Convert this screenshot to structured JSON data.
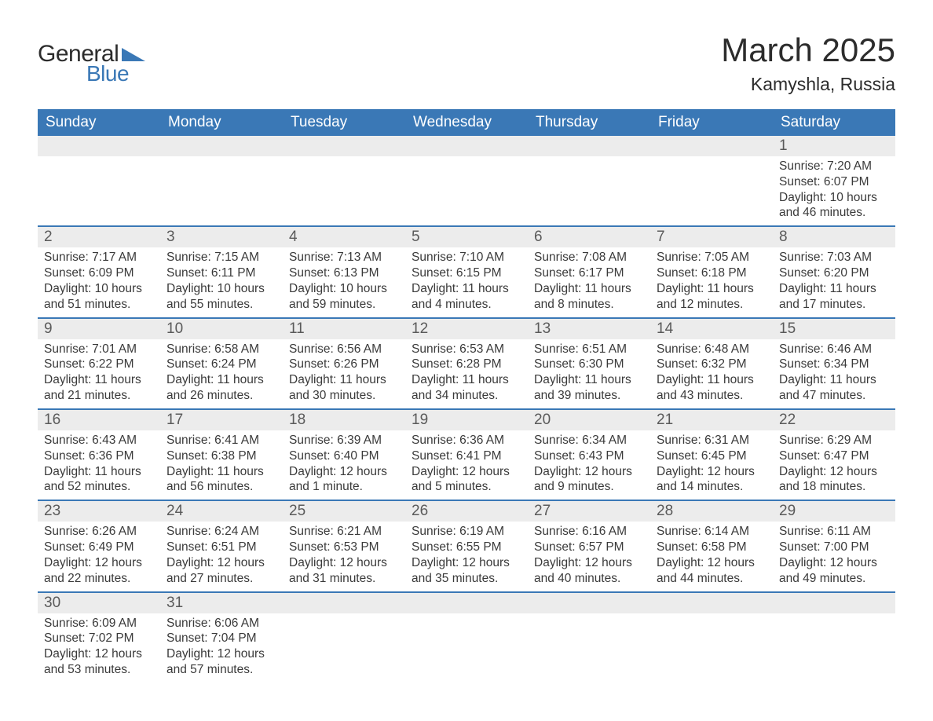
{
  "logo": {
    "word1": "General",
    "word2": "Blue",
    "shape_color": "#3a78b6",
    "text_color_dark": "#2c2c2c"
  },
  "title": "March 2025",
  "subtitle": "Kamyshla, Russia",
  "colors": {
    "header_bg": "#3a78b6",
    "header_text": "#ffffff",
    "daynum_bg": "#ececec",
    "body_text": "#3a3a3a",
    "row_border": "#3a78b6",
    "page_bg": "#ffffff"
  },
  "typography": {
    "title_fontsize": 42,
    "subtitle_fontsize": 23,
    "th_fontsize": 19,
    "daynum_fontsize": 19,
    "data_fontsize": 15.5,
    "font_family": "Arial"
  },
  "weekdays": [
    "Sunday",
    "Monday",
    "Tuesday",
    "Wednesday",
    "Thursday",
    "Friday",
    "Saturday"
  ],
  "weeks": [
    [
      null,
      null,
      null,
      null,
      null,
      null,
      {
        "n": "1",
        "sunrise": "7:20 AM",
        "sunset": "6:07 PM",
        "dl1": "10 hours",
        "dl2": "and 46 minutes."
      }
    ],
    [
      {
        "n": "2",
        "sunrise": "7:17 AM",
        "sunset": "6:09 PM",
        "dl1": "10 hours",
        "dl2": "and 51 minutes."
      },
      {
        "n": "3",
        "sunrise": "7:15 AM",
        "sunset": "6:11 PM",
        "dl1": "10 hours",
        "dl2": "and 55 minutes."
      },
      {
        "n": "4",
        "sunrise": "7:13 AM",
        "sunset": "6:13 PM",
        "dl1": "10 hours",
        "dl2": "and 59 minutes."
      },
      {
        "n": "5",
        "sunrise": "7:10 AM",
        "sunset": "6:15 PM",
        "dl1": "11 hours",
        "dl2": "and 4 minutes."
      },
      {
        "n": "6",
        "sunrise": "7:08 AM",
        "sunset": "6:17 PM",
        "dl1": "11 hours",
        "dl2": "and 8 minutes."
      },
      {
        "n": "7",
        "sunrise": "7:05 AM",
        "sunset": "6:18 PM",
        "dl1": "11 hours",
        "dl2": "and 12 minutes."
      },
      {
        "n": "8",
        "sunrise": "7:03 AM",
        "sunset": "6:20 PM",
        "dl1": "11 hours",
        "dl2": "and 17 minutes."
      }
    ],
    [
      {
        "n": "9",
        "sunrise": "7:01 AM",
        "sunset": "6:22 PM",
        "dl1": "11 hours",
        "dl2": "and 21 minutes."
      },
      {
        "n": "10",
        "sunrise": "6:58 AM",
        "sunset": "6:24 PM",
        "dl1": "11 hours",
        "dl2": "and 26 minutes."
      },
      {
        "n": "11",
        "sunrise": "6:56 AM",
        "sunset": "6:26 PM",
        "dl1": "11 hours",
        "dl2": "and 30 minutes."
      },
      {
        "n": "12",
        "sunrise": "6:53 AM",
        "sunset": "6:28 PM",
        "dl1": "11 hours",
        "dl2": "and 34 minutes."
      },
      {
        "n": "13",
        "sunrise": "6:51 AM",
        "sunset": "6:30 PM",
        "dl1": "11 hours",
        "dl2": "and 39 minutes."
      },
      {
        "n": "14",
        "sunrise": "6:48 AM",
        "sunset": "6:32 PM",
        "dl1": "11 hours",
        "dl2": "and 43 minutes."
      },
      {
        "n": "15",
        "sunrise": "6:46 AM",
        "sunset": "6:34 PM",
        "dl1": "11 hours",
        "dl2": "and 47 minutes."
      }
    ],
    [
      {
        "n": "16",
        "sunrise": "6:43 AM",
        "sunset": "6:36 PM",
        "dl1": "11 hours",
        "dl2": "and 52 minutes."
      },
      {
        "n": "17",
        "sunrise": "6:41 AM",
        "sunset": "6:38 PM",
        "dl1": "11 hours",
        "dl2": "and 56 minutes."
      },
      {
        "n": "18",
        "sunrise": "6:39 AM",
        "sunset": "6:40 PM",
        "dl1": "12 hours",
        "dl2": "and 1 minute."
      },
      {
        "n": "19",
        "sunrise": "6:36 AM",
        "sunset": "6:41 PM",
        "dl1": "12 hours",
        "dl2": "and 5 minutes."
      },
      {
        "n": "20",
        "sunrise": "6:34 AM",
        "sunset": "6:43 PM",
        "dl1": "12 hours",
        "dl2": "and 9 minutes."
      },
      {
        "n": "21",
        "sunrise": "6:31 AM",
        "sunset": "6:45 PM",
        "dl1": "12 hours",
        "dl2": "and 14 minutes."
      },
      {
        "n": "22",
        "sunrise": "6:29 AM",
        "sunset": "6:47 PM",
        "dl1": "12 hours",
        "dl2": "and 18 minutes."
      }
    ],
    [
      {
        "n": "23",
        "sunrise": "6:26 AM",
        "sunset": "6:49 PM",
        "dl1": "12 hours",
        "dl2": "and 22 minutes."
      },
      {
        "n": "24",
        "sunrise": "6:24 AM",
        "sunset": "6:51 PM",
        "dl1": "12 hours",
        "dl2": "and 27 minutes."
      },
      {
        "n": "25",
        "sunrise": "6:21 AM",
        "sunset": "6:53 PM",
        "dl1": "12 hours",
        "dl2": "and 31 minutes."
      },
      {
        "n": "26",
        "sunrise": "6:19 AM",
        "sunset": "6:55 PM",
        "dl1": "12 hours",
        "dl2": "and 35 minutes."
      },
      {
        "n": "27",
        "sunrise": "6:16 AM",
        "sunset": "6:57 PM",
        "dl1": "12 hours",
        "dl2": "and 40 minutes."
      },
      {
        "n": "28",
        "sunrise": "6:14 AM",
        "sunset": "6:58 PM",
        "dl1": "12 hours",
        "dl2": "and 44 minutes."
      },
      {
        "n": "29",
        "sunrise": "6:11 AM",
        "sunset": "7:00 PM",
        "dl1": "12 hours",
        "dl2": "and 49 minutes."
      }
    ],
    [
      {
        "n": "30",
        "sunrise": "6:09 AM",
        "sunset": "7:02 PM",
        "dl1": "12 hours",
        "dl2": "and 53 minutes."
      },
      {
        "n": "31",
        "sunrise": "6:06 AM",
        "sunset": "7:04 PM",
        "dl1": "12 hours",
        "dl2": "and 57 minutes."
      },
      null,
      null,
      null,
      null,
      null
    ]
  ],
  "labels": {
    "sunrise": "Sunrise: ",
    "sunset": "Sunset: ",
    "daylight": "Daylight: "
  }
}
